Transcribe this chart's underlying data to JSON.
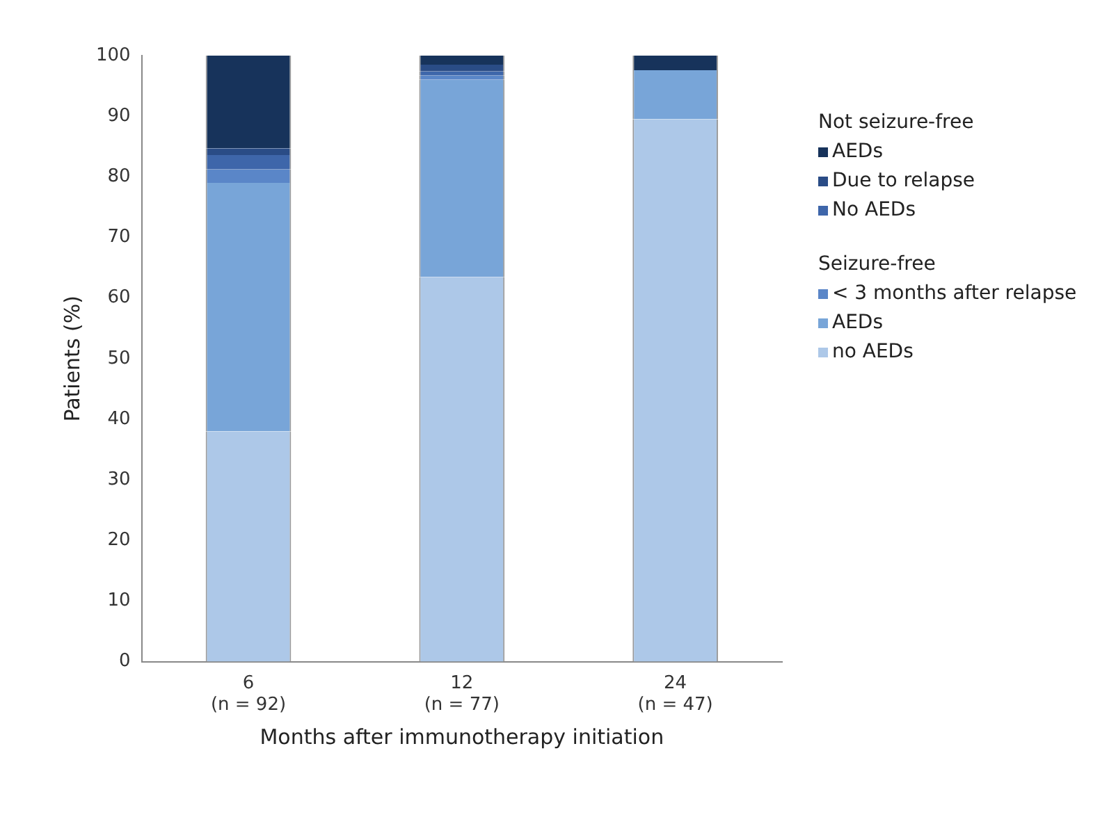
{
  "chart_data": {
    "type": "bar",
    "stacked": true,
    "xlabel": "Months after immunotherapy initiation",
    "ylabel": "Patients (%)",
    "categories": [
      "6\n(n = 92)",
      "12\n(n = 77)",
      "24\n(n = 47)"
    ],
    "series": [
      {
        "name": "no AEDs",
        "color": "#adc8e8",
        "values": [
          38,
          63.5,
          89.5
        ]
      },
      {
        "name": "AEDs",
        "color": "#78a5d8",
        "values": [
          41,
          32.5,
          8.1
        ]
      },
      {
        "name": "< 3 months after relapse",
        "color": "#5a86c8",
        "values": [
          2.2,
          0.7,
          0
        ]
      },
      {
        "name": "No AEDs",
        "color": "#3e66aa",
        "values": [
          2.4,
          0.7,
          0
        ]
      },
      {
        "name": "Due to relapse",
        "color": "#2a4c86",
        "values": [
          1.1,
          1.1,
          0
        ]
      },
      {
        "name": "AEDs",
        "color": "#17335b",
        "values": [
          15.3,
          1.5,
          2.4
        ]
      }
    ],
    "annotations": [
      "Seizure-free",
      "Not seizure-free"
    ],
    "ylim": [
      0,
      100
    ],
    "yticks": [
      0,
      10,
      20,
      30,
      40,
      50,
      60,
      70,
      80,
      90,
      100
    ],
    "grid": false,
    "legend": "right"
  }
}
